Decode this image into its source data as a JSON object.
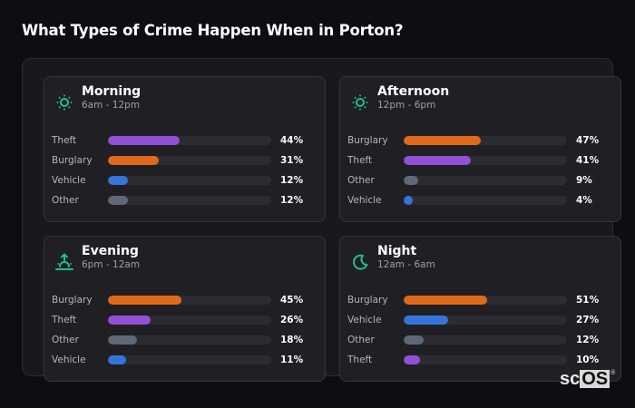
{
  "title": "What Types of Crime Happen When in Porton?",
  "colors": {
    "theft": "#9350d6",
    "burglary": "#e06a1c",
    "vehicle": "#3575d9",
    "other": "#5f6878",
    "accent_icon": "#1fbf8f"
  },
  "cards": [
    {
      "title": "Morning",
      "subtitle": "6am - 12pm",
      "icon": "sun-icon",
      "rows": [
        {
          "label": "Theft",
          "value": 44,
          "display": "44%",
          "color": "#9350d6"
        },
        {
          "label": "Burglary",
          "value": 31,
          "display": "31%",
          "color": "#e06a1c"
        },
        {
          "label": "Vehicle",
          "value": 12,
          "display": "12%",
          "color": "#3575d9"
        },
        {
          "label": "Other",
          "value": 12,
          "display": "12%",
          "color": "#5f6878"
        }
      ]
    },
    {
      "title": "Afternoon",
      "subtitle": "12pm - 6pm",
      "icon": "sun-icon",
      "rows": [
        {
          "label": "Burglary",
          "value": 47,
          "display": "47%",
          "color": "#e06a1c"
        },
        {
          "label": "Theft",
          "value": 41,
          "display": "41%",
          "color": "#9350d6"
        },
        {
          "label": "Other",
          "value": 9,
          "display": "9%",
          "color": "#5f6878"
        },
        {
          "label": "Vehicle",
          "value": 4,
          "display": "4%",
          "color": "#3575d9"
        }
      ]
    },
    {
      "title": "Evening",
      "subtitle": "6pm - 12am",
      "icon": "sunset-icon",
      "rows": [
        {
          "label": "Burglary",
          "value": 45,
          "display": "45%",
          "color": "#e06a1c"
        },
        {
          "label": "Theft",
          "value": 26,
          "display": "26%",
          "color": "#9350d6"
        },
        {
          "label": "Other",
          "value": 18,
          "display": "18%",
          "color": "#5f6878"
        },
        {
          "label": "Vehicle",
          "value": 11,
          "display": "11%",
          "color": "#3575d9"
        }
      ]
    },
    {
      "title": "Night",
      "subtitle": "12am - 6am",
      "icon": "moon-icon",
      "rows": [
        {
          "label": "Burglary",
          "value": 51,
          "display": "51%",
          "color": "#e06a1c"
        },
        {
          "label": "Vehicle",
          "value": 27,
          "display": "27%",
          "color": "#3575d9"
        },
        {
          "label": "Other",
          "value": 12,
          "display": "12%",
          "color": "#5f6878"
        },
        {
          "label": "Theft",
          "value": 10,
          "display": "10%",
          "color": "#9350d6"
        }
      ]
    }
  ],
  "logo": {
    "sc": "sc",
    "os": "OS",
    "reg": "®"
  },
  "chart_data": {
    "type": "bar",
    "title": "What Types of Crime Happen When in Porton?",
    "orientation": "horizontal",
    "unit": "%",
    "xlim": [
      0,
      100
    ],
    "panels": [
      {
        "name": "Morning",
        "time_range": "6am - 12pm",
        "categories": [
          "Theft",
          "Burglary",
          "Vehicle",
          "Other"
        ],
        "values": [
          44,
          31,
          12,
          12
        ]
      },
      {
        "name": "Afternoon",
        "time_range": "12pm - 6pm",
        "categories": [
          "Burglary",
          "Theft",
          "Other",
          "Vehicle"
        ],
        "values": [
          47,
          41,
          9,
          4
        ]
      },
      {
        "name": "Evening",
        "time_range": "6pm - 12am",
        "categories": [
          "Burglary",
          "Theft",
          "Other",
          "Vehicle"
        ],
        "values": [
          45,
          26,
          18,
          11
        ]
      },
      {
        "name": "Night",
        "time_range": "12am - 6am",
        "categories": [
          "Burglary",
          "Vehicle",
          "Other",
          "Theft"
        ],
        "values": [
          51,
          27,
          12,
          10
        ]
      }
    ],
    "series_colors": {
      "Theft": "#9350d6",
      "Burglary": "#e06a1c",
      "Vehicle": "#3575d9",
      "Other": "#5f6878"
    },
    "grid": false,
    "legend": "none"
  }
}
